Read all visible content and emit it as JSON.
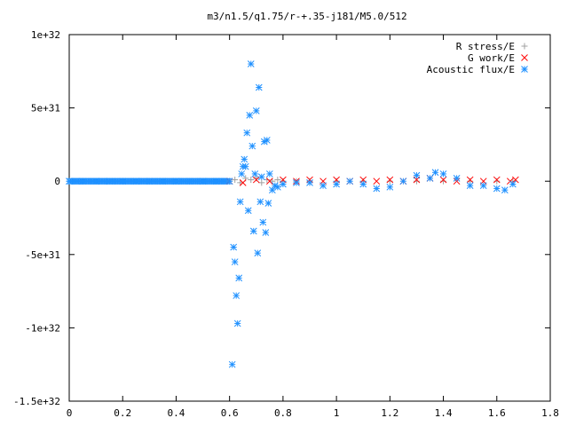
{
  "chart_data": {
    "type": "scatter",
    "title": "m3/n1.5/q1.75/r-+.35-j181/M5.0/512",
    "xlabel": "",
    "ylabel": "",
    "xlim": [
      0,
      1.8
    ],
    "ylim": [
      -1.5e+32,
      1e+32
    ],
    "x_ticks": [
      {
        "value": 0,
        "label": "0"
      },
      {
        "value": 0.2,
        "label": "0.2"
      },
      {
        "value": 0.4,
        "label": "0.4"
      },
      {
        "value": 0.6,
        "label": "0.6"
      },
      {
        "value": 0.8,
        "label": "0.8"
      },
      {
        "value": 1,
        "label": "1"
      },
      {
        "value": 1.2,
        "label": "1.2"
      },
      {
        "value": 1.4,
        "label": "1.4"
      },
      {
        "value": 1.6,
        "label": "1.6"
      },
      {
        "value": 1.8,
        "label": "1.8"
      }
    ],
    "y_ticks": [
      {
        "value": 1e+32,
        "label": "1e+32"
      },
      {
        "value": 5e+31,
        "label": "5e+31"
      },
      {
        "value": 0,
        "label": "0"
      },
      {
        "value": -5e+31,
        "label": "-5e+31"
      },
      {
        "value": -1e+32,
        "label": "-1e+32"
      },
      {
        "value": -1.5e+32,
        "label": "-1.5e+32"
      }
    ],
    "grid": false,
    "legend_position": "top-right",
    "series": [
      {
        "name": "R stress/E",
        "marker": "plus",
        "color": "#a0a0a0",
        "x": [
          0.6,
          0.62,
          0.64,
          0.66,
          0.68,
          0.7,
          0.72,
          0.74,
          0.76,
          0.78,
          0.8,
          0.85,
          0.9,
          1.0,
          1.1,
          1.2,
          1.3,
          1.4,
          1.5,
          1.6,
          1.66
        ],
        "y": [
          0,
          1e+30,
          -1e+30,
          2e+30,
          1e+30,
          2e+30,
          -1e+30,
          1e+30,
          0,
          1e+30,
          0,
          0,
          0,
          0,
          0,
          0,
          0,
          0,
          0,
          0,
          0
        ]
      },
      {
        "name": "G work/E",
        "marker": "cross",
        "color": "#ff0000",
        "x": [
          0.6,
          0.65,
          0.7,
          0.75,
          0.8,
          0.85,
          0.9,
          0.95,
          1.0,
          1.05,
          1.1,
          1.15,
          1.2,
          1.25,
          1.3,
          1.35,
          1.4,
          1.45,
          1.5,
          1.55,
          1.6,
          1.65,
          1.67
        ],
        "y": [
          0,
          -1e+30,
          1e+30,
          0,
          1e+30,
          0,
          1e+30,
          0,
          1e+30,
          0,
          1e+30,
          0,
          1e+30,
          0,
          1e+30,
          2e+30,
          1e+30,
          0,
          1e+30,
          0,
          1e+30,
          0,
          1e+30
        ]
      },
      {
        "name": "Acoustic flux/E",
        "marker": "star",
        "color": "#1e90ff",
        "x": [
          0,
          0.05,
          0.1,
          0.15,
          0.2,
          0.25,
          0.3,
          0.35,
          0.4,
          0.45,
          0.5,
          0.55,
          0.6,
          0.61,
          0.615,
          0.62,
          0.625,
          0.63,
          0.635,
          0.64,
          0.645,
          0.65,
          0.655,
          0.66,
          0.665,
          0.67,
          0.675,
          0.68,
          0.685,
          0.69,
          0.695,
          0.7,
          0.705,
          0.71,
          0.715,
          0.72,
          0.725,
          0.73,
          0.735,
          0.74,
          0.745,
          0.75,
          0.76,
          0.77,
          0.78,
          0.8,
          0.85,
          0.9,
          0.95,
          1.0,
          1.05,
          1.1,
          1.15,
          1.2,
          1.25,
          1.3,
          1.35,
          1.37,
          1.4,
          1.45,
          1.5,
          1.55,
          1.6,
          1.63,
          1.66
        ],
        "y": [
          0,
          0,
          0,
          0,
          0,
          0,
          0,
          0,
          0,
          0,
          0,
          0,
          0,
          -1.25e+32,
          -4.5e+31,
          -5.5e+31,
          -7.8e+31,
          -9.7e+31,
          -6.6e+31,
          -1.4e+31,
          5e+30,
          1e+31,
          1.5e+31,
          1e+31,
          3.3e+31,
          -2e+31,
          4.5e+31,
          8e+31,
          2.4e+31,
          -3.4e+31,
          5e+30,
          4.8e+31,
          -4.9e+31,
          6.4e+31,
          -1.4e+31,
          3e+30,
          -2.8e+31,
          2.7e+31,
          -3.5e+31,
          2.8e+31,
          -1.5e+31,
          5e+30,
          -6e+30,
          -3e+30,
          -4e+30,
          -2e+30,
          -1e+30,
          -1e+30,
          -3e+30,
          -2e+30,
          0,
          -2e+30,
          -5e+30,
          -4e+30,
          0,
          4e+30,
          2e+30,
          6e+30,
          5e+30,
          2e+30,
          -3e+30,
          -3e+30,
          -5e+30,
          -6e+30,
          -2e+30
        ]
      }
    ]
  }
}
